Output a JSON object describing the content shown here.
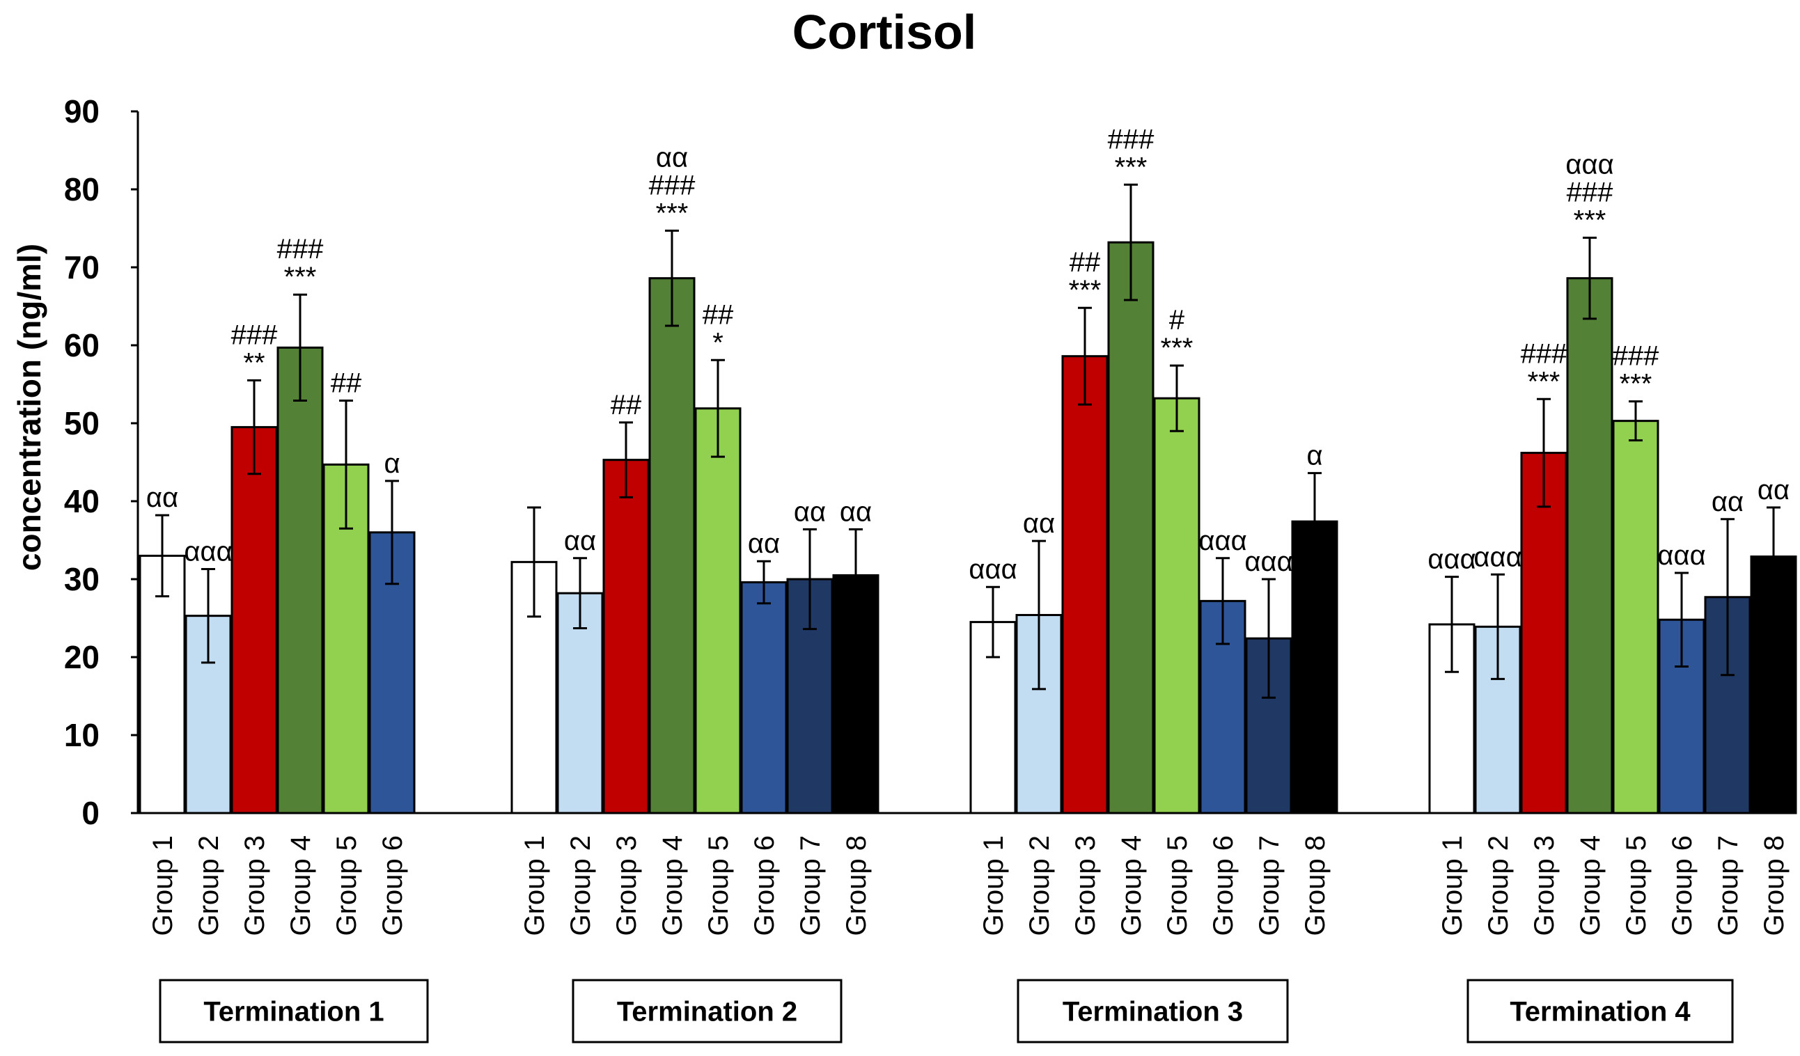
{
  "chart_data": {
    "type": "bar",
    "title": "Cortisol",
    "ylabel": "concentration (ng/ml)",
    "xlabel": "",
    "ylim": [
      0,
      90
    ],
    "yticks": [
      0,
      10,
      20,
      30,
      40,
      50,
      60,
      70,
      80,
      90
    ],
    "grid": false,
    "group_colors": {
      "Group 1": "#ffffff",
      "Group 2": "#c2dcf2",
      "Group 3": "#c00000",
      "Group 4": "#538135",
      "Group 5": "#92d050",
      "Group 6": "#2e5597",
      "Group 7": "#1f3864",
      "Group 8": "#000000"
    },
    "panels": [
      {
        "label": "Termination 1",
        "bars": [
          {
            "group": "Group 1",
            "value": 33.0,
            "error": 5.2,
            "annotations": [
              "αα"
            ]
          },
          {
            "group": "Group 2",
            "value": 25.3,
            "error": 6.0,
            "annotations": [
              "ααα"
            ]
          },
          {
            "group": "Group 3",
            "value": 49.5,
            "error": 6.0,
            "annotations": [
              "###",
              "**"
            ]
          },
          {
            "group": "Group 4",
            "value": 59.7,
            "error": 6.8,
            "annotations": [
              "###",
              "***"
            ]
          },
          {
            "group": "Group 5",
            "value": 44.7,
            "error": 8.2,
            "annotations": [
              "##"
            ]
          },
          {
            "group": "Group 6",
            "value": 36.0,
            "error": 6.6,
            "annotations": [
              "α"
            ]
          }
        ]
      },
      {
        "label": "Termination 2",
        "bars": [
          {
            "group": "Group 1",
            "value": 32.2,
            "error": 7.0,
            "annotations": []
          },
          {
            "group": "Group 2",
            "value": 28.2,
            "error": 4.5,
            "annotations": [
              "αα"
            ]
          },
          {
            "group": "Group 3",
            "value": 45.3,
            "error": 4.8,
            "annotations": [
              "##"
            ]
          },
          {
            "group": "Group 4",
            "value": 68.6,
            "error": 6.1,
            "annotations": [
              "αα",
              "###",
              "***"
            ]
          },
          {
            "group": "Group 5",
            "value": 51.9,
            "error": 6.2,
            "annotations": [
              "##",
              "*"
            ]
          },
          {
            "group": "Group 6",
            "value": 29.6,
            "error": 2.7,
            "annotations": [
              "αα"
            ]
          },
          {
            "group": "Group 7",
            "value": 30.0,
            "error": 6.4,
            "annotations": [
              "αα"
            ]
          },
          {
            "group": "Group 8",
            "value": 30.5,
            "error": 5.9,
            "annotations": [
              "αα"
            ]
          }
        ]
      },
      {
        "label": "Termination 3",
        "bars": [
          {
            "group": "Group 1",
            "value": 24.5,
            "error": 4.5,
            "annotations": [
              "ααα"
            ]
          },
          {
            "group": "Group 2",
            "value": 25.4,
            "error": 9.5,
            "annotations": [
              "αα"
            ]
          },
          {
            "group": "Group 3",
            "value": 58.6,
            "error": 6.2,
            "annotations": [
              "##",
              "***"
            ]
          },
          {
            "group": "Group 4",
            "value": 73.2,
            "error": 7.4,
            "annotations": [
              "###",
              "***"
            ]
          },
          {
            "group": "Group 5",
            "value": 53.2,
            "error": 4.2,
            "annotations": [
              "#",
              "***"
            ]
          },
          {
            "group": "Group 6",
            "value": 27.2,
            "error": 5.5,
            "annotations": [
              "ααα"
            ]
          },
          {
            "group": "Group 7",
            "value": 22.4,
            "error": 7.6,
            "annotations": [
              "ααα"
            ]
          },
          {
            "group": "Group 8",
            "value": 37.4,
            "error": 6.2,
            "annotations": [
              "α"
            ]
          }
        ]
      },
      {
        "label": "Termination 4",
        "bars": [
          {
            "group": "Group 1",
            "value": 24.2,
            "error": 6.1,
            "annotations": [
              "ααα"
            ]
          },
          {
            "group": "Group 2",
            "value": 23.9,
            "error": 6.7,
            "annotations": [
              "ααα"
            ]
          },
          {
            "group": "Group 3",
            "value": 46.2,
            "error": 6.9,
            "annotations": [
              "###",
              "***"
            ]
          },
          {
            "group": "Group 4",
            "value": 68.6,
            "error": 5.2,
            "annotations": [
              "ααα",
              "###",
              "***"
            ]
          },
          {
            "group": "Group 5",
            "value": 50.3,
            "error": 2.5,
            "annotations": [
              "###",
              "***"
            ]
          },
          {
            "group": "Group 6",
            "value": 24.8,
            "error": 6.0,
            "annotations": [
              "ααα"
            ]
          },
          {
            "group": "Group 7",
            "value": 27.7,
            "error": 10.0,
            "annotations": [
              "αα"
            ]
          },
          {
            "group": "Group 8",
            "value": 32.9,
            "error": 6.3,
            "annotations": [
              "αα"
            ]
          }
        ]
      }
    ]
  }
}
